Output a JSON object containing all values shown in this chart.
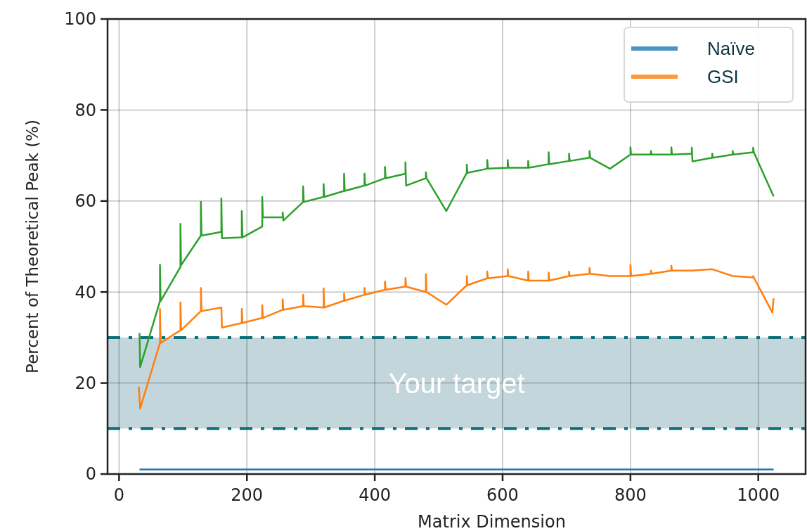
{
  "chart_data": {
    "type": "line",
    "xlabel": "Matrix Dimension",
    "ylabel": "Percent of Theoretical Peak (%)",
    "xlim": [
      -18,
      1074
    ],
    "ylim": [
      0,
      100
    ],
    "xticks": [
      0,
      200,
      400,
      600,
      800,
      1000
    ],
    "yticks": [
      0,
      20,
      40,
      60,
      80,
      100
    ],
    "grid": true,
    "legend": "top right",
    "series": [
      {
        "name": "Naïve",
        "color": "#1f77b4",
        "x": [
          32,
          512,
          768,
          1024
        ],
        "values": [
          1,
          1,
          1,
          1
        ]
      },
      {
        "name": "GSI",
        "color": "#ff7f0e",
        "x": [
          31,
          33,
          64,
          64,
          65,
          96,
          96,
          97,
          128,
          128,
          129,
          160,
          161,
          192,
          192,
          193,
          224,
          224,
          225,
          256,
          256,
          257,
          288,
          288,
          289,
          320,
          320,
          321,
          352,
          352,
          353,
          384,
          384,
          385,
          416,
          416,
          417,
          448,
          448,
          449,
          480,
          480,
          481,
          512,
          544,
          544,
          545,
          576,
          576,
          577,
          608,
          608,
          609,
          640,
          640,
          641,
          672,
          672,
          673,
          704,
          704,
          705,
          736,
          736,
          737,
          768,
          800,
          800,
          801,
          832,
          832,
          833,
          864,
          864,
          865,
          896,
          928,
          960,
          992,
          992,
          993,
          1022,
          1024
        ],
        "values": [
          19.2,
          14.4,
          28.8,
          36.3,
          28.8,
          31.6,
          37.7,
          31.6,
          35.8,
          40.9,
          35.8,
          36.6,
          32.2,
          33.2,
          36.3,
          33.2,
          34.3,
          37.1,
          34.3,
          36.1,
          38.4,
          36.1,
          36.9,
          39.4,
          36.9,
          36.6,
          40.8,
          36.6,
          38.1,
          39.7,
          38.1,
          39.4,
          40.9,
          39.4,
          40.5,
          42.3,
          40.5,
          41.2,
          43.1,
          41.2,
          40,
          43.9,
          40,
          37.2,
          41.5,
          43.5,
          41.5,
          43,
          44.5,
          43,
          43.5,
          45,
          43.5,
          42.5,
          44.5,
          42.5,
          42.5,
          44.3,
          42.5,
          43.5,
          44.5,
          43.5,
          44,
          45.3,
          44,
          43.5,
          43.5,
          46,
          43.5,
          44,
          44.7,
          44,
          44.7,
          45.8,
          44.7,
          44.7,
          45,
          43.5,
          43.2,
          43.5,
          43.2,
          35.5,
          38.6
        ]
      },
      {
        "color": "#2ca02c",
        "x": [
          32,
          33,
          64,
          64,
          65,
          96,
          96,
          97,
          128,
          128,
          129,
          160,
          160,
          161,
          192,
          192,
          193,
          224,
          224,
          225,
          256,
          256,
          257,
          288,
          288,
          289,
          320,
          320,
          321,
          352,
          352,
          353,
          384,
          384,
          385,
          416,
          416,
          417,
          448,
          448,
          449,
          480,
          480,
          481,
          512,
          544,
          544,
          545,
          576,
          576,
          577,
          608,
          608,
          609,
          640,
          640,
          641,
          672,
          672,
          673,
          704,
          704,
          705,
          736,
          736,
          737,
          768,
          800,
          800,
          801,
          832,
          832,
          833,
          864,
          864,
          865,
          896,
          896,
          897,
          928,
          928,
          929,
          960,
          960,
          961,
          992,
          992,
          993,
          1024
        ],
        "values": [
          31,
          23.5,
          38,
          46,
          38,
          45.5,
          55,
          45.9,
          52.4,
          59.8,
          52.4,
          53.2,
          60.6,
          51.8,
          52,
          57.8,
          52,
          54.4,
          60.9,
          56.4,
          56.4,
          57.5,
          55.7,
          59.8,
          63.2,
          59.8,
          60.9,
          63.7,
          60.9,
          62.2,
          66,
          62.2,
          63.4,
          66,
          63.4,
          65,
          67.5,
          65,
          66,
          68.5,
          63.4,
          65,
          66.3,
          65,
          57.8,
          66.2,
          68,
          66.2,
          67.1,
          69,
          67.1,
          67.3,
          69,
          67.3,
          67.3,
          68.8,
          67.3,
          68.1,
          70.7,
          68.1,
          68.8,
          70.4,
          68.8,
          69.5,
          71,
          69.5,
          67.1,
          70.2,
          71.8,
          70.2,
          70.2,
          71,
          70.2,
          70.2,
          71.8,
          70.2,
          70.4,
          71.7,
          68.7,
          69.5,
          70.4,
          69.5,
          70.2,
          71,
          70.2,
          70.7,
          71.7,
          70.7,
          61
        ]
      }
    ],
    "bands": [
      {
        "axis": "y",
        "from": 10,
        "to": 30,
        "label": "Your target",
        "color": "#c3d6dc"
      }
    ],
    "ref_lines": [
      {
        "axis": "y",
        "value": 10,
        "color": "#0e6f7a",
        "line_style": "dashdot"
      },
      {
        "axis": "y",
        "value": 30,
        "color": "#0e6f7a",
        "line_style": "dashdot"
      }
    ]
  }
}
